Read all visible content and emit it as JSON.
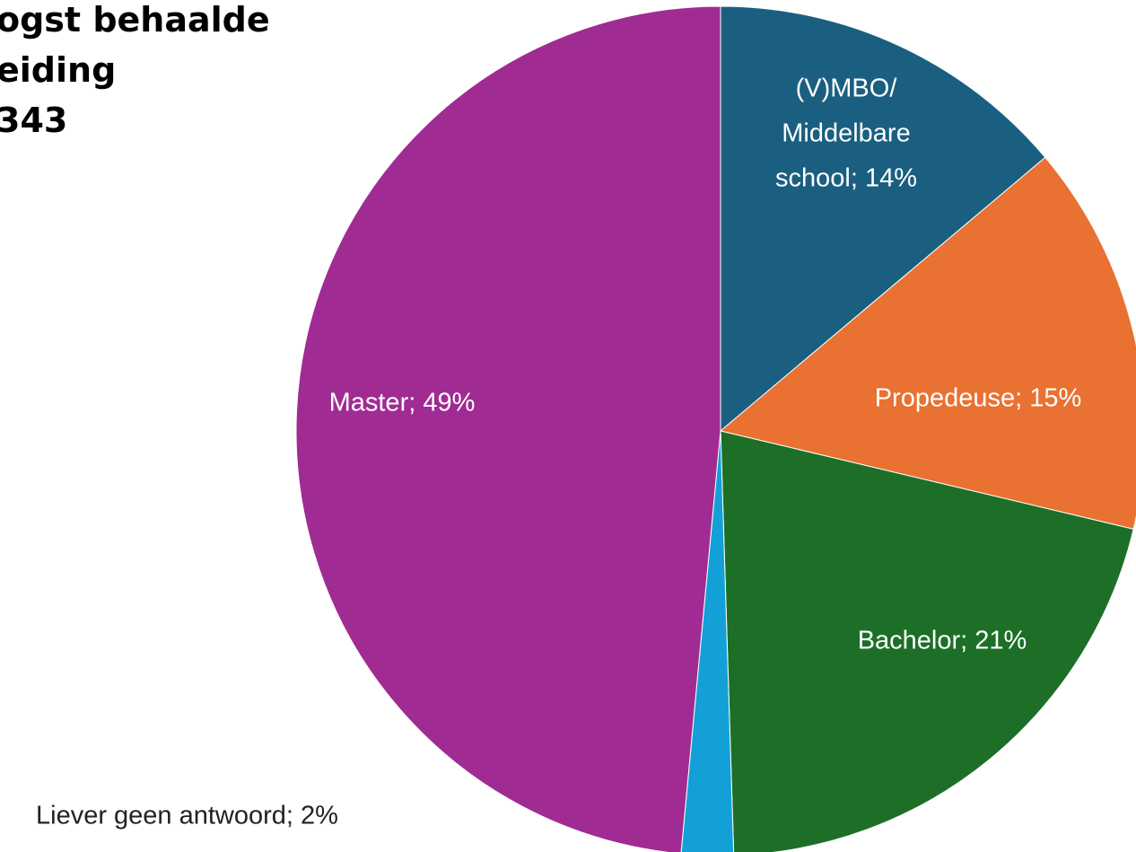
{
  "chart_data": {
    "type": "pie",
    "title_lines": [
      "ogst behaalde",
      "eiding",
      "343"
    ],
    "labels": [
      [
        "(V)MBO/",
        "Middelbare",
        "school; 14%"
      ],
      [
        "Propedeuse; 15%"
      ],
      [
        "Bachelor; 21%"
      ],
      [
        "Liever geen antwoord; 2%"
      ],
      [
        "Master; 49%"
      ]
    ],
    "values": [
      14,
      15,
      21,
      2,
      49
    ],
    "colors": [
      "#1a5f80",
      "#e97132",
      "#1d6f28",
      "#12a0d7",
      "#a02b93"
    ],
    "label_colors": [
      "#ffffff",
      "#ffffff",
      "#ffffff",
      "#222222",
      "#ffffff"
    ]
  }
}
